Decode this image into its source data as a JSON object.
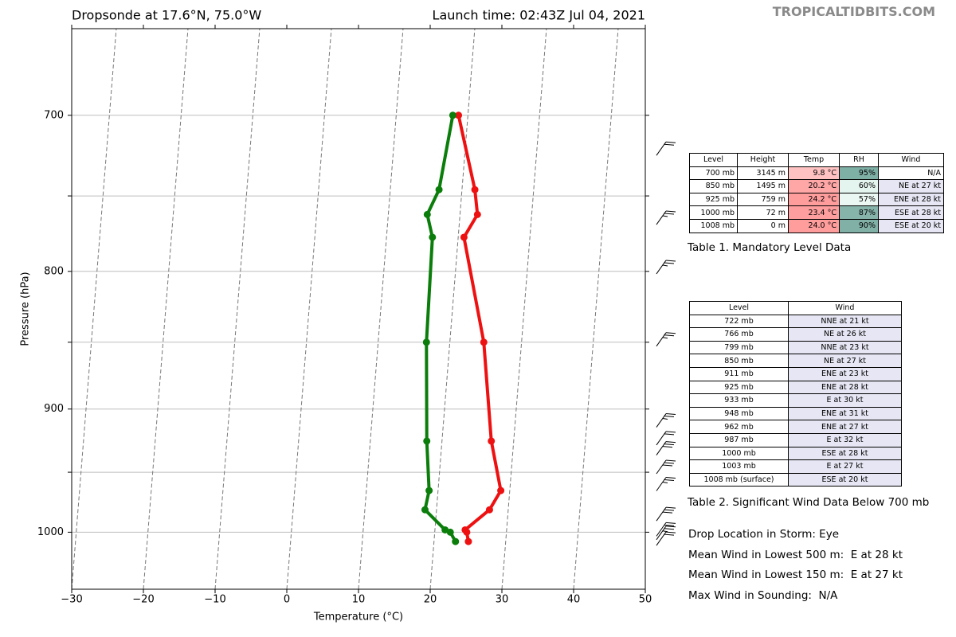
{
  "chart_data": {
    "type": "line",
    "title": "Dropsonde at 17.6°N, 75.0°W",
    "subtitle": "Launch time: 02:43Z Jul 04, 2021",
    "xlabel": "Temperature (°C)",
    "ylabel": "Pressure (hPa)",
    "xlim": [
      -30,
      50
    ],
    "ylim": [
      1050,
      650
    ],
    "ylog": true,
    "grid": true,
    "xticks": [
      {
        "value": -30,
        "label": "−30"
      },
      {
        "value": -20,
        "label": "−20"
      },
      {
        "value": -10,
        "label": "−10"
      },
      0,
      10,
      20,
      30,
      40,
      50
    ],
    "yticks": [
      700,
      800,
      900,
      1000
    ],
    "minor_yticks": [
      750,
      850,
      950
    ],
    "pressure": [
      700,
      746,
      762,
      777,
      850,
      925,
      965,
      981,
      998,
      1000,
      1008
    ],
    "series": [
      {
        "color": "#ee1111",
        "values": [
          9.8,
          14.3,
          15.4,
          14.2,
          20.1,
          24.1,
          26.9,
          25.9,
          23.1,
          23.4,
          23.9
        ]
      },
      {
        "color": "#0a7d0a",
        "values": [
          9.0,
          9.3,
          8.4,
          9.8,
          12.1,
          15.1,
          16.9,
          16.9,
          20.3,
          21.1,
          22.1
        ]
      }
    ],
    "barbs": {
      "color": "#000000",
      "pressure": [
        722,
        766,
        799,
        850,
        911,
        925,
        933,
        948,
        962,
        987,
        1000,
        1003,
        1008
      ],
      "speed": [
        21,
        26,
        23,
        27,
        23,
        28,
        30,
        31,
        27,
        32,
        28,
        27,
        20
      ]
    }
  },
  "header": {
    "site": "TROPICALTIDBITS.COM"
  },
  "table1": {
    "columns": [
      "Level",
      "Height",
      "Temp",
      "RH",
      "Wind"
    ],
    "rows": [
      [
        "700 mb",
        "3145 m",
        "9.8 °C",
        "95%",
        "N/A"
      ],
      [
        "850 mb",
        "1495 m",
        "20.2 °C",
        "60%",
        "NE at 27 kt"
      ],
      [
        "925 mb",
        "759 m",
        "24.2 °C",
        "57%",
        "ENE at 28 kt"
      ],
      [
        "1000 mb",
        "72 m",
        "23.4 °C",
        "87%",
        "ESE at 28 kt"
      ],
      [
        "1008 mb",
        "0 m",
        "24.0 °C",
        "90%",
        "ESE at 20 kt"
      ]
    ],
    "temp_fill": [
      "#ffc2c2",
      "#ffa6a6",
      "#ff9c9c",
      "#ff9e9e",
      "#ff9c9c"
    ],
    "rh_fill": [
      "#7fb0a6",
      "#e4f4ef",
      "#ebf7f3",
      "#86b4aa",
      "#80b0a6"
    ],
    "wind_fill": [
      "#ffffff",
      "#e6e6f4",
      "#e6e6f4",
      "#e6e6f4",
      "#e6e6f4"
    ],
    "caption": "Table 1. Mandatory Level Data"
  },
  "table2": {
    "columns": [
      "Level",
      "Wind"
    ],
    "rows": [
      [
        "722 mb",
        "NNE at 21 kt"
      ],
      [
        "766 mb",
        "NE at 26 kt"
      ],
      [
        "799 mb",
        "NNE at 23 kt"
      ],
      [
        "850 mb",
        "NE at 27 kt"
      ],
      [
        "911 mb",
        "ENE at 23 kt"
      ],
      [
        "925 mb",
        "ENE at 28 kt"
      ],
      [
        "933 mb",
        "E at 30 kt"
      ],
      [
        "948 mb",
        "ENE at 31 kt"
      ],
      [
        "962 mb",
        "ENE at 27 kt"
      ],
      [
        "987 mb",
        "E at 32 kt"
      ],
      [
        "1000 mb",
        "ESE at 28 kt"
      ],
      [
        "1003 mb",
        "E at 27 kt"
      ],
      [
        "1008 mb (surface)",
        "ESE at 20 kt"
      ]
    ],
    "wind_fill": "#e6e6f4",
    "caption": "Table 2. Significant Wind Data Below 700 mb"
  },
  "notes": [
    "Drop Location in Storm: Eye",
    "Mean Wind in Lowest 500 m:  E at 28 kt",
    "Mean Wind in Lowest 150 m:  E at 27 kt",
    "Max Wind in Sounding:  N/A"
  ]
}
